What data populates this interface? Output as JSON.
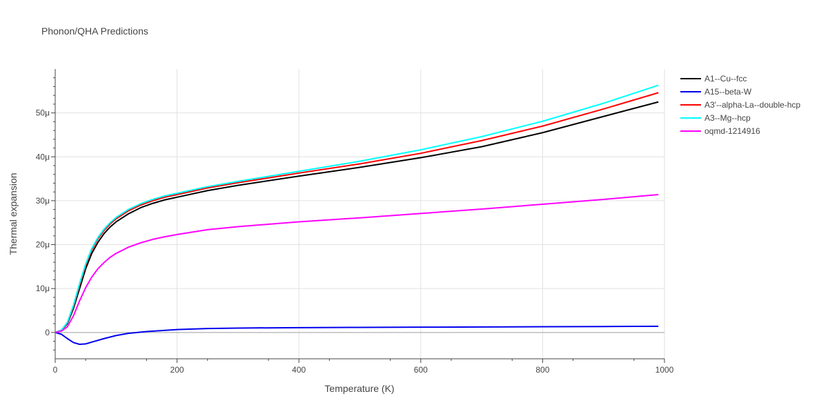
{
  "chart_data": {
    "type": "line",
    "title": "Phonon/QHA Predictions",
    "xlabel": "Temperature (K)",
    "ylabel": "Thermal expansion",
    "xlim": [
      0,
      1000
    ],
    "ylim": [
      -6e-06,
      6e-05
    ],
    "x_ticks": [
      0,
      200,
      400,
      600,
      800,
      1000
    ],
    "x_tick_labels": [
      "0",
      "200",
      "400",
      "600",
      "800",
      "1000"
    ],
    "y_ticks": [
      0,
      1e-05,
      2e-05,
      3e-05,
      4e-05,
      5e-05
    ],
    "y_tick_labels": [
      "0",
      "10μ",
      "20μ",
      "30μ",
      "40μ",
      "50μ"
    ],
    "grid": true,
    "legend_position": "top-right",
    "series": [
      {
        "name": "A1--Cu--fcc",
        "color": "#000000",
        "x": [
          0,
          10,
          20,
          30,
          40,
          50,
          60,
          70,
          80,
          90,
          100,
          120,
          140,
          160,
          180,
          200,
          250,
          300,
          400,
          500,
          600,
          700,
          800,
          900,
          990
        ],
        "y": [
          0,
          5e-07,
          2e-06,
          5.5e-06,
          1e-05,
          1.45e-05,
          1.8e-05,
          2.05e-05,
          2.25e-05,
          2.4e-05,
          2.52e-05,
          2.7e-05,
          2.84e-05,
          2.94e-05,
          3.02e-05,
          3.08e-05,
          3.23e-05,
          3.35e-05,
          3.56e-05,
          3.76e-05,
          3.98e-05,
          4.23e-05,
          4.55e-05,
          4.92e-05,
          5.25e-05
        ]
      },
      {
        "name": "A15--beta-W",
        "color": "#0000ee",
        "x": [
          0,
          10,
          20,
          30,
          40,
          50,
          60,
          80,
          100,
          120,
          150,
          200,
          250,
          300,
          400,
          500,
          600,
          700,
          800,
          900,
          990
        ],
        "y": [
          0,
          -4e-07,
          -1.4e-06,
          -2.3e-06,
          -2.7e-06,
          -2.6e-06,
          -2.2e-06,
          -1.4e-06,
          -7e-07,
          -2e-07,
          2e-07,
          6.5e-07,
          9e-07,
          1e-06,
          1.1e-06,
          1.15e-06,
          1.2e-06,
          1.25e-06,
          1.3e-06,
          1.35e-06,
          1.4e-06
        ]
      },
      {
        "name": "A3'--alpha-La--double-hcp",
        "color": "#ff0000",
        "x": [
          0,
          10,
          20,
          30,
          40,
          50,
          60,
          70,
          80,
          90,
          100,
          120,
          140,
          160,
          180,
          200,
          250,
          300,
          400,
          500,
          600,
          700,
          800,
          900,
          990
        ],
        "y": [
          0,
          5e-07,
          2.2e-06,
          6e-06,
          1.08e-05,
          1.53e-05,
          1.88e-05,
          2.13e-05,
          2.32e-05,
          2.47e-05,
          2.59e-05,
          2.77e-05,
          2.9e-05,
          3e-05,
          3.08e-05,
          3.14e-05,
          3.29e-05,
          3.41e-05,
          3.63e-05,
          3.84e-05,
          4.08e-05,
          4.37e-05,
          4.7e-05,
          5.09e-05,
          5.46e-05
        ]
      },
      {
        "name": "A3--Mg--hcp",
        "color": "#00ffff",
        "x": [
          0,
          10,
          20,
          30,
          40,
          50,
          60,
          70,
          80,
          90,
          100,
          120,
          140,
          160,
          180,
          200,
          250,
          300,
          400,
          500,
          600,
          700,
          800,
          900,
          990
        ],
        "y": [
          0,
          5e-07,
          2.3e-06,
          6.2e-06,
          1.11e-05,
          1.56e-05,
          1.91e-05,
          2.16e-05,
          2.35e-05,
          2.5e-05,
          2.62e-05,
          2.8e-05,
          2.93e-05,
          3.03e-05,
          3.11e-05,
          3.17e-05,
          3.32e-05,
          3.44e-05,
          3.67e-05,
          3.9e-05,
          4.16e-05,
          4.46e-05,
          4.81e-05,
          5.22e-05,
          5.63e-05
        ]
      },
      {
        "name": "oqmd-1214916",
        "color": "#ff00ff",
        "x": [
          0,
          10,
          20,
          30,
          40,
          50,
          60,
          70,
          80,
          90,
          100,
          120,
          140,
          160,
          180,
          200,
          250,
          300,
          400,
          500,
          600,
          700,
          800,
          900,
          990
        ],
        "y": [
          0,
          3e-07,
          1.3e-06,
          3.8e-06,
          7.2e-06,
          1.02e-05,
          1.26e-05,
          1.45e-05,
          1.59e-05,
          1.71e-05,
          1.8e-05,
          1.94e-05,
          2.04e-05,
          2.12e-05,
          2.18e-05,
          2.23e-05,
          2.34e-05,
          2.41e-05,
          2.52e-05,
          2.61e-05,
          2.71e-05,
          2.81e-05,
          2.92e-05,
          3.03e-05,
          3.14e-05
        ]
      }
    ]
  }
}
